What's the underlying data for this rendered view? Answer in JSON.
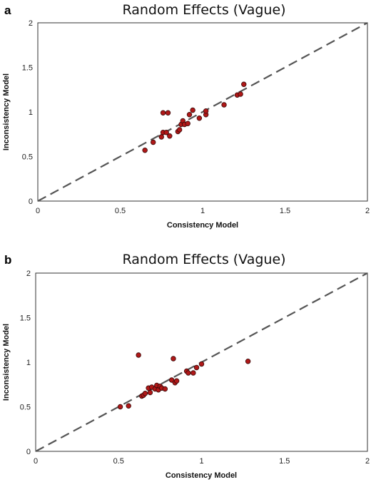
{
  "chart_data": [
    {
      "type": "scatter",
      "panel_label": "a",
      "title": "Random Effects (Vague)",
      "xlabel": "Consistency Model",
      "ylabel": "Inconsistency Model",
      "xlim": [
        0,
        2
      ],
      "ylim": [
        0,
        2
      ],
      "x_ticks": [
        "0",
        "0.5",
        "1",
        "1.5",
        "2"
      ],
      "y_ticks": [
        "0",
        "0.5",
        "1",
        "1.5",
        "2"
      ],
      "grid": false,
      "reference_line": "y = x (dashed)",
      "colors": {
        "point_fill": "#b01818",
        "point_stroke": "#3a0a0a",
        "reference_line": "#555555",
        "frame": "#333333"
      },
      "points": [
        {
          "x": 0.65,
          "y": 0.57
        },
        {
          "x": 0.7,
          "y": 0.66
        },
        {
          "x": 0.75,
          "y": 0.72
        },
        {
          "x": 0.76,
          "y": 0.77
        },
        {
          "x": 0.78,
          "y": 0.77
        },
        {
          "x": 0.8,
          "y": 0.73
        },
        {
          "x": 0.76,
          "y": 0.99
        },
        {
          "x": 0.79,
          "y": 0.99
        },
        {
          "x": 0.85,
          "y": 0.78
        },
        {
          "x": 0.86,
          "y": 0.8
        },
        {
          "x": 0.87,
          "y": 0.86
        },
        {
          "x": 0.88,
          "y": 0.9
        },
        {
          "x": 0.89,
          "y": 0.86
        },
        {
          "x": 0.91,
          "y": 0.87
        },
        {
          "x": 0.92,
          "y": 0.97
        },
        {
          "x": 0.94,
          "y": 1.02
        },
        {
          "x": 0.98,
          "y": 0.93
        },
        {
          "x": 1.02,
          "y": 0.97
        },
        {
          "x": 1.02,
          "y": 1.01
        },
        {
          "x": 1.13,
          "y": 1.08
        },
        {
          "x": 1.21,
          "y": 1.19
        },
        {
          "x": 1.23,
          "y": 1.2
        },
        {
          "x": 1.25,
          "y": 1.31
        }
      ]
    },
    {
      "type": "scatter",
      "panel_label": "b",
      "title": "Random Effects (Vague)",
      "xlabel": "Consistency Model",
      "ylabel": "Inconsistency Model",
      "xlim": [
        0,
        2
      ],
      "ylim": [
        0,
        2
      ],
      "x_ticks": [
        "0",
        "0.5",
        "1",
        "1.5",
        "2"
      ],
      "y_ticks": [
        "0",
        "0.5",
        "1",
        "1.5",
        "2"
      ],
      "grid": false,
      "reference_line": "y = x (dashed)",
      "colors": {
        "point_fill": "#b01818",
        "point_stroke": "#3a0a0a",
        "reference_line": "#555555",
        "frame": "#333333"
      },
      "points": [
        {
          "x": 0.51,
          "y": 0.5
        },
        {
          "x": 0.56,
          "y": 0.51
        },
        {
          "x": 0.62,
          "y": 1.08
        },
        {
          "x": 0.64,
          "y": 0.62
        },
        {
          "x": 0.65,
          "y": 0.63
        },
        {
          "x": 0.66,
          "y": 0.65
        },
        {
          "x": 0.68,
          "y": 0.71
        },
        {
          "x": 0.69,
          "y": 0.66
        },
        {
          "x": 0.7,
          "y": 0.72
        },
        {
          "x": 0.72,
          "y": 0.7
        },
        {
          "x": 0.73,
          "y": 0.74
        },
        {
          "x": 0.74,
          "y": 0.69
        },
        {
          "x": 0.75,
          "y": 0.73
        },
        {
          "x": 0.76,
          "y": 0.71
        },
        {
          "x": 0.78,
          "y": 0.7
        },
        {
          "x": 0.82,
          "y": 0.8
        },
        {
          "x": 0.83,
          "y": 1.04
        },
        {
          "x": 0.84,
          "y": 0.77
        },
        {
          "x": 0.85,
          "y": 0.79
        },
        {
          "x": 0.91,
          "y": 0.9
        },
        {
          "x": 0.92,
          "y": 0.88
        },
        {
          "x": 0.95,
          "y": 0.88
        },
        {
          "x": 0.97,
          "y": 0.94
        },
        {
          "x": 1.0,
          "y": 0.98
        },
        {
          "x": 1.28,
          "y": 1.01
        }
      ]
    }
  ]
}
